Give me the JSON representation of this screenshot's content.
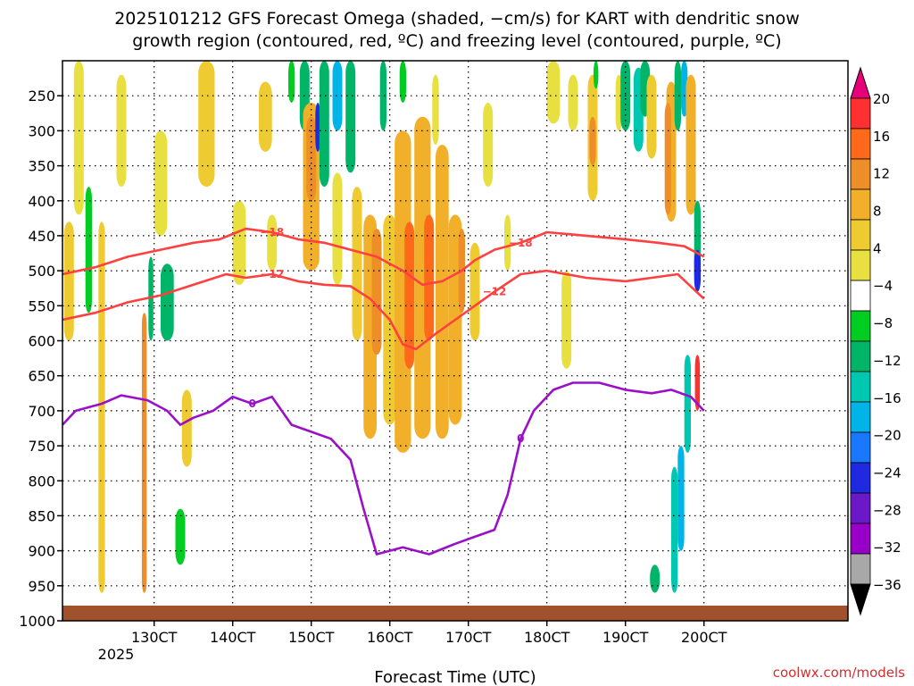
{
  "chart_data": {
    "type": "heatmap",
    "title_line1": "2025101212 GFS Forecast Omega (shaded, −cm/s) for KART with dendritic snow",
    "title_line2": "growth region (contoured, red, ºC) and freezing level (contoured, purple, ºC)",
    "xlabel": "Forecast Time (UTC)",
    "year_label": "2025",
    "credit": "coolwx.com/models",
    "x_axis": {
      "range_hours": [
        -60,
        180
      ],
      "ticks": [
        {
          "label": "130CT",
          "hour": -32
        },
        {
          "label": "140CT",
          "hour": -8
        },
        {
          "label": "150CT",
          "hour": 16
        },
        {
          "label": "160CT",
          "hour": 40
        },
        {
          "label": "170CT",
          "hour": 64
        },
        {
          "label": "180CT",
          "hour": 88
        },
        {
          "label": "190CT",
          "hour": 112
        },
        {
          "label": "200CT",
          "hour": 136
        }
      ]
    },
    "y_axis": {
      "range_hpa": [
        200,
        1000
      ],
      "ticks": [
        250,
        300,
        350,
        400,
        450,
        500,
        550,
        600,
        650,
        700,
        750,
        800,
        850,
        900,
        950,
        1000
      ]
    },
    "colorbar": {
      "labels": [
        "20",
        "16",
        "12",
        "8",
        "4",
        "−4",
        "−8",
        "−12",
        "−16",
        "−20",
        "−24",
        "−28",
        "−32",
        "−36"
      ],
      "colors": [
        "#e8007a",
        "#ff3030",
        "#ff6a1a",
        "#ee8e28",
        "#f2b02a",
        "#eecb30",
        "#e8e040",
        "#ffffff",
        "#00cc22",
        "#00b468",
        "#00c8b0",
        "#00b4e8",
        "#1a78ff",
        "#1f2ae0",
        "#6a18c8",
        "#9800c8",
        "#a8a8a8",
        "#000000"
      ]
    },
    "omega_blobs": [
      {
        "t": -58,
        "dt": 3,
        "p": 430,
        "dp": 600,
        "v": 6
      },
      {
        "t": -48,
        "dt": 2,
        "p": 430,
        "dp": 960,
        "v": 7
      },
      {
        "t": -52,
        "dt": 2,
        "p": 380,
        "dp": 560,
        "v": -7
      },
      {
        "t": -35,
        "dt": 1.5,
        "p": 560,
        "dp": 960,
        "v": 11
      },
      {
        "t": -33,
        "dt": 1.5,
        "p": 480,
        "dp": 600,
        "v": -8
      },
      {
        "t": -28,
        "dt": 4,
        "p": 490,
        "dp": 600,
        "v": -8
      },
      {
        "t": -24,
        "dt": 3,
        "p": 840,
        "dp": 920,
        "v": -7
      },
      {
        "t": -55,
        "dt": 3,
        "p": 200,
        "dp": 420,
        "v": 5
      },
      {
        "t": -42,
        "dt": 3,
        "p": 220,
        "dp": 380,
        "v": 5
      },
      {
        "t": -30,
        "dt": 4,
        "p": 300,
        "dp": 450,
        "v": 5
      },
      {
        "t": -16,
        "dt": 5,
        "p": 200,
        "dp": 380,
        "v": 6
      },
      {
        "t": -22,
        "dt": 3,
        "p": 670,
        "dp": 780,
        "v": 6
      },
      {
        "t": -6,
        "dt": 4,
        "p": 400,
        "dp": 520,
        "v": 5
      },
      {
        "t": 2,
        "dt": 4,
        "p": 230,
        "dp": 330,
        "v": 6
      },
      {
        "t": 4,
        "dt": 3,
        "p": 420,
        "dp": 500,
        "v": 5
      },
      {
        "t": 10,
        "dt": 2,
        "p": 200,
        "dp": 260,
        "v": -7
      },
      {
        "t": 14,
        "dt": 3,
        "p": 200,
        "dp": 300,
        "v": -9
      },
      {
        "t": 16,
        "dt": 5,
        "p": 260,
        "dp": 500,
        "v": 8
      },
      {
        "t": 16,
        "dt": 3,
        "p": 280,
        "dp": 400,
        "v": 11
      },
      {
        "t": 18,
        "dt": 1.5,
        "p": 260,
        "dp": 330,
        "v": -20
      },
      {
        "t": 20,
        "dt": 3,
        "p": 200,
        "dp": 380,
        "v": -8
      },
      {
        "t": 24,
        "dt": 3,
        "p": 200,
        "dp": 300,
        "v": -12
      },
      {
        "t": 28,
        "dt": 3,
        "p": 200,
        "dp": 360,
        "v": -9
      },
      {
        "t": 24,
        "dt": 3,
        "p": 360,
        "dp": 520,
        "v": 5
      },
      {
        "t": 30,
        "dt": 3,
        "p": 380,
        "dp": 600,
        "v": 7
      },
      {
        "t": 34,
        "dt": 4,
        "p": 420,
        "dp": 740,
        "v": 8
      },
      {
        "t": 36,
        "dt": 3,
        "p": 440,
        "dp": 620,
        "v": 11
      },
      {
        "t": 40,
        "dt": 4,
        "p": 420,
        "dp": 720,
        "v": 7
      },
      {
        "t": 44,
        "dt": 5,
        "p": 300,
        "dp": 760,
        "v": 8
      },
      {
        "t": 46,
        "dt": 3,
        "p": 430,
        "dp": 640,
        "v": 12
      },
      {
        "t": 50,
        "dt": 5,
        "p": 280,
        "dp": 740,
        "v": 9
      },
      {
        "t": 52,
        "dt": 3,
        "p": 420,
        "dp": 600,
        "v": 12
      },
      {
        "t": 56,
        "dt": 4,
        "p": 320,
        "dp": 740,
        "v": 8
      },
      {
        "t": 60,
        "dt": 4,
        "p": 420,
        "dp": 720,
        "v": 8
      },
      {
        "t": 62,
        "dt": 2,
        "p": 440,
        "dp": 560,
        "v": 11
      },
      {
        "t": 66,
        "dt": 3,
        "p": 460,
        "dp": 600,
        "v": 7
      },
      {
        "t": 38,
        "dt": 2,
        "p": 200,
        "dp": 300,
        "v": -8
      },
      {
        "t": 44,
        "dt": 2,
        "p": 200,
        "dp": 260,
        "v": -7
      },
      {
        "t": 54,
        "dt": 2,
        "p": 220,
        "dp": 320,
        "v": 5
      },
      {
        "t": 70,
        "dt": 3,
        "p": 260,
        "dp": 380,
        "v": 5
      },
      {
        "t": 76,
        "dt": 2,
        "p": 420,
        "dp": 500,
        "v": 5
      },
      {
        "t": 90,
        "dt": 4,
        "p": 200,
        "dp": 290,
        "v": 5
      },
      {
        "t": 94,
        "dt": 3,
        "p": 500,
        "dp": 640,
        "v": 5
      },
      {
        "t": 96,
        "dt": 3,
        "p": 220,
        "dp": 300,
        "v": 5
      },
      {
        "t": 102,
        "dt": 3,
        "p": 220,
        "dp": 400,
        "v": 7
      },
      {
        "t": 102,
        "dt": 2,
        "p": 280,
        "dp": 350,
        "v": 11
      },
      {
        "t": 103,
        "dt": 1.5,
        "p": 200,
        "dp": 240,
        "v": -7
      },
      {
        "t": 110,
        "dt": 2,
        "p": 220,
        "dp": 300,
        "v": 5
      },
      {
        "t": 112,
        "dt": 3,
        "p": 200,
        "dp": 300,
        "v": -8
      },
      {
        "t": 116,
        "dt": 3,
        "p": 210,
        "dp": 330,
        "v": -10
      },
      {
        "t": 118,
        "dt": 3,
        "p": 200,
        "dp": 280,
        "v": -8
      },
      {
        "t": 120,
        "dt": 3,
        "p": 220,
        "dp": 340,
        "v": 6
      },
      {
        "t": 126,
        "dt": 3,
        "p": 230,
        "dp": 430,
        "v": 8
      },
      {
        "t": 125,
        "dt": 2,
        "p": 260,
        "dp": 420,
        "v": 11
      },
      {
        "t": 128,
        "dt": 2,
        "p": 200,
        "dp": 300,
        "v": -8
      },
      {
        "t": 130,
        "dt": 2,
        "p": 200,
        "dp": 280,
        "v": -14
      },
      {
        "t": 132,
        "dt": 3,
        "p": 220,
        "dp": 420,
        "v": 8
      },
      {
        "t": 134,
        "dt": 2,
        "p": 400,
        "dp": 520,
        "v": -9
      },
      {
        "t": 134,
        "dt": 2,
        "p": 470,
        "dp": 530,
        "v": -20
      },
      {
        "t": 134,
        "dt": 1.5,
        "p": 620,
        "dp": 700,
        "v": 16
      },
      {
        "t": 131,
        "dt": 2,
        "p": 620,
        "dp": 760,
        "v": -10
      },
      {
        "t": 127,
        "dt": 2,
        "p": 780,
        "dp": 960,
        "v": -10
      },
      {
        "t": 129,
        "dt": 2,
        "p": 750,
        "dp": 900,
        "v": -14
      },
      {
        "t": 121,
        "dt": 3,
        "p": 920,
        "dp": 960,
        "v": -8
      }
    ],
    "contours": {
      "dendritic_red": [
        {
          "label": "−18",
          "points": [
            [
              -60,
              505
            ],
            [
              -50,
              495
            ],
            [
              -40,
              480
            ],
            [
              -30,
              470
            ],
            [
              -20,
              460
            ],
            [
              -12,
              455
            ],
            [
              -4,
              440
            ],
            [
              4,
              445
            ],
            [
              12,
              455
            ],
            [
              20,
              460
            ],
            [
              28,
              470
            ],
            [
              36,
              480
            ],
            [
              44,
              500
            ],
            [
              50,
              520
            ],
            [
              56,
              515
            ],
            [
              62,
              500
            ],
            [
              66,
              485
            ],
            [
              72,
              470
            ],
            [
              80,
              460
            ],
            [
              88,
              445
            ],
            [
              100,
              450
            ],
            [
              112,
              455
            ],
            [
              122,
              460
            ],
            [
              130,
              465
            ],
            [
              136,
              480
            ]
          ]
        },
        {
          "label": "−12",
          "points": [
            [
              -60,
              570
            ],
            [
              -50,
              560
            ],
            [
              -40,
              545
            ],
            [
              -30,
              535
            ],
            [
              -20,
              520
            ],
            [
              -10,
              505
            ],
            [
              -4,
              510
            ],
            [
              4,
              505
            ],
            [
              12,
              515
            ],
            [
              20,
              520
            ],
            [
              28,
              522
            ],
            [
              34,
              540
            ],
            [
              40,
              570
            ],
            [
              44,
              605
            ],
            [
              48,
              612
            ],
            [
              54,
              590
            ],
            [
              60,
              570
            ],
            [
              66,
              550
            ],
            [
              72,
              530
            ],
            [
              80,
              505
            ],
            [
              88,
              500
            ],
            [
              100,
              510
            ],
            [
              112,
              515
            ],
            [
              120,
              510
            ],
            [
              128,
              505
            ],
            [
              136,
              540
            ]
          ]
        }
      ],
      "freezing_purple": [
        {
          "label": "0",
          "points": [
            [
              -60,
              720
            ],
            [
              -56,
              700
            ],
            [
              -48,
              690
            ],
            [
              -42,
              678
            ],
            [
              -34,
              685
            ],
            [
              -28,
              700
            ],
            [
              -24,
              720
            ],
            [
              -20,
              710
            ],
            [
              -14,
              700
            ],
            [
              -8,
              680
            ],
            [
              -2,
              690
            ],
            [
              4,
              680
            ],
            [
              10,
              720
            ],
            [
              16,
              730
            ],
            [
              22,
              740
            ],
            [
              28,
              770
            ],
            [
              32,
              840
            ],
            [
              36,
              905
            ],
            [
              44,
              895
            ],
            [
              52,
              905
            ],
            [
              60,
              890
            ],
            [
              66,
              880
            ],
            [
              72,
              870
            ],
            [
              76,
              820
            ],
            [
              80,
              740
            ],
            [
              84,
              700
            ],
            [
              90,
              670
            ],
            [
              96,
              660
            ],
            [
              104,
              660
            ],
            [
              112,
              670
            ],
            [
              120,
              675
            ],
            [
              126,
              670
            ],
            [
              132,
              680
            ],
            [
              136,
              700
            ]
          ]
        }
      ]
    }
  }
}
